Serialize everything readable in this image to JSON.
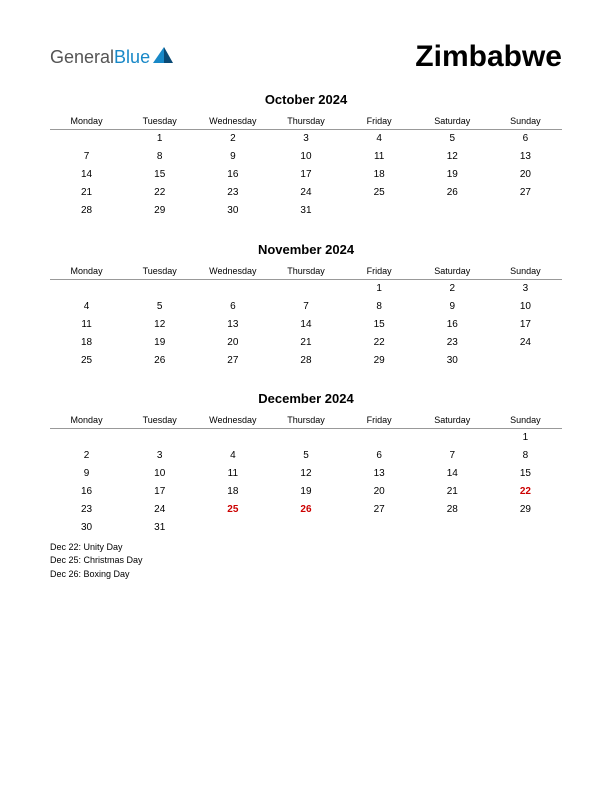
{
  "logo": {
    "general": "General",
    "blue": "Blue"
  },
  "country": "Zimbabwe",
  "day_headers": [
    "Monday",
    "Tuesday",
    "Wednesday",
    "Thursday",
    "Friday",
    "Saturday",
    "Sunday"
  ],
  "months": [
    {
      "title": "October 2024",
      "weeks": [
        [
          "",
          "1",
          "2",
          "3",
          "4",
          "5",
          "6"
        ],
        [
          "7",
          "8",
          "9",
          "10",
          "11",
          "12",
          "13"
        ],
        [
          "14",
          "15",
          "16",
          "17",
          "18",
          "19",
          "20"
        ],
        [
          "21",
          "22",
          "23",
          "24",
          "25",
          "26",
          "27"
        ],
        [
          "28",
          "29",
          "30",
          "31",
          "",
          "",
          ""
        ]
      ],
      "holiday_cells": [],
      "holidays": []
    },
    {
      "title": "November 2024",
      "weeks": [
        [
          "",
          "",
          "",
          "",
          "1",
          "2",
          "3"
        ],
        [
          "4",
          "5",
          "6",
          "7",
          "8",
          "9",
          "10"
        ],
        [
          "11",
          "12",
          "13",
          "14",
          "15",
          "16",
          "17"
        ],
        [
          "18",
          "19",
          "20",
          "21",
          "22",
          "23",
          "24"
        ],
        [
          "25",
          "26",
          "27",
          "28",
          "29",
          "30",
          ""
        ]
      ],
      "holiday_cells": [],
      "holidays": []
    },
    {
      "title": "December 2024",
      "weeks": [
        [
          "",
          "",
          "",
          "",
          "",
          "",
          "1"
        ],
        [
          "2",
          "3",
          "4",
          "5",
          "6",
          "7",
          "8"
        ],
        [
          "9",
          "10",
          "11",
          "12",
          "13",
          "14",
          "15"
        ],
        [
          "16",
          "17",
          "18",
          "19",
          "20",
          "21",
          "22"
        ],
        [
          "23",
          "24",
          "25",
          "26",
          "27",
          "28",
          "29"
        ],
        [
          "30",
          "31",
          "",
          "",
          "",
          "",
          ""
        ]
      ],
      "holiday_cells": [
        "22",
        "25",
        "26"
      ],
      "holidays": [
        "Dec 22: Unity Day",
        "Dec 25: Christmas Day",
        "Dec 26: Boxing Day"
      ]
    }
  ],
  "colors": {
    "text": "#000000",
    "holiday": "#cc0000",
    "logo_general": "#555555",
    "logo_blue": "#1888c7",
    "background": "#ffffff",
    "header_border": "#999999"
  },
  "typography": {
    "country_fontsize": 30,
    "month_title_fontsize": 13,
    "dayhead_fontsize": 9,
    "cell_fontsize": 10,
    "holidaylist_fontsize": 9
  }
}
